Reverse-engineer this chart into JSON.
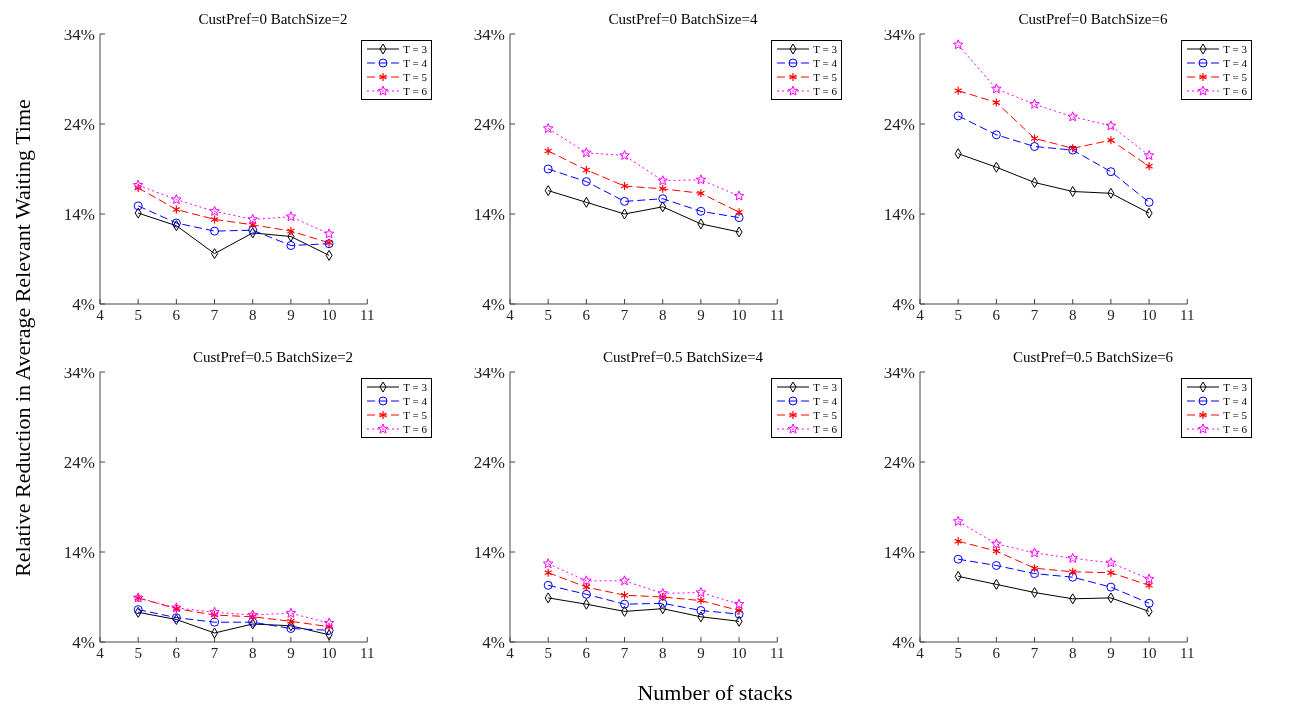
{
  "chart_data": [
    {
      "type": "line",
      "title": "CustPref=0 BatchSize=2",
      "ylabel": "Relative Reduction in Average Relevant Waiting Time",
      "x": [
        5,
        6,
        7,
        8,
        9,
        10
      ],
      "xlim": [
        4,
        11
      ],
      "xticks": [
        4,
        5,
        6,
        7,
        8,
        9,
        10,
        11
      ],
      "ylim": [
        4,
        34
      ],
      "yticks": [
        {
          "value": 4,
          "label": "4%"
        },
        {
          "value": 14,
          "label": "14%"
        },
        {
          "value": 24,
          "label": "24%"
        },
        {
          "value": 34,
          "label": "34%"
        }
      ],
      "grid": false,
      "legend": "top right",
      "series": [
        {
          "name": "T = 3",
          "color": "#000000",
          "marker": "diamond",
          "line_style": "solid",
          "values": [
            14.1,
            12.7,
            9.6,
            11.9,
            11.5,
            9.4
          ]
        },
        {
          "name": "T = 4",
          "color": "#0000ff",
          "marker": "circle",
          "line_style": "dashed",
          "values": [
            14.9,
            13.0,
            12.1,
            12.2,
            10.5,
            10.7
          ]
        },
        {
          "name": "T = 5",
          "color": "#ff0000",
          "marker": "cross",
          "line_style": "dashed",
          "values": [
            16.9,
            14.5,
            13.4,
            12.8,
            12.1,
            10.8
          ]
        },
        {
          "name": "T = 6",
          "color": "#ff00ff",
          "marker": "star",
          "line_style": "dotted",
          "values": [
            17.2,
            15.6,
            14.3,
            13.4,
            13.7,
            11.8
          ]
        }
      ]
    },
    {
      "type": "line",
      "title": "CustPref=0 BatchSize=4",
      "x": [
        5,
        6,
        7,
        8,
        9,
        10
      ],
      "xlim": [
        4,
        11
      ],
      "xticks": [
        4,
        5,
        6,
        7,
        8,
        9,
        10,
        11
      ],
      "ylim": [
        4,
        34
      ],
      "yticks": [
        {
          "value": 4,
          "label": "4%"
        },
        {
          "value": 14,
          "label": "14%"
        },
        {
          "value": 24,
          "label": "24%"
        },
        {
          "value": 34,
          "label": "34%"
        }
      ],
      "grid": false,
      "legend": "top right",
      "series": [
        {
          "name": "T = 3",
          "color": "#000000",
          "marker": "diamond",
          "line_style": "solid",
          "values": [
            16.6,
            15.3,
            14.0,
            14.8,
            12.9,
            12.0
          ]
        },
        {
          "name": "T = 4",
          "color": "#0000ff",
          "marker": "circle",
          "line_style": "dashed",
          "values": [
            19.0,
            17.6,
            15.4,
            15.7,
            14.3,
            13.6
          ]
        },
        {
          "name": "T = 5",
          "color": "#ff0000",
          "marker": "cross",
          "line_style": "dashed",
          "values": [
            21.0,
            18.9,
            17.1,
            16.8,
            16.3,
            14.2
          ]
        },
        {
          "name": "T = 6",
          "color": "#ff00ff",
          "marker": "star",
          "line_style": "dotted",
          "values": [
            23.5,
            20.8,
            20.5,
            17.7,
            17.8,
            16.0
          ]
        }
      ]
    },
    {
      "type": "line",
      "title": "CustPref=0 BatchSize=6",
      "x": [
        5,
        6,
        7,
        8,
        9,
        10
      ],
      "xlim": [
        4,
        11
      ],
      "xticks": [
        4,
        5,
        6,
        7,
        8,
        9,
        10,
        11
      ],
      "ylim": [
        4,
        34
      ],
      "yticks": [
        {
          "value": 4,
          "label": "4%"
        },
        {
          "value": 14,
          "label": "14%"
        },
        {
          "value": 24,
          "label": "24%"
        },
        {
          "value": 34,
          "label": "34%"
        }
      ],
      "grid": false,
      "legend": "top right",
      "series": [
        {
          "name": "T = 3",
          "color": "#000000",
          "marker": "diamond",
          "line_style": "solid",
          "values": [
            20.7,
            19.2,
            17.5,
            16.5,
            16.3,
            14.1
          ]
        },
        {
          "name": "T = 4",
          "color": "#0000ff",
          "marker": "circle",
          "line_style": "dashed",
          "values": [
            24.9,
            22.8,
            21.5,
            21.1,
            18.7,
            15.3
          ]
        },
        {
          "name": "T = 5",
          "color": "#ff0000",
          "marker": "cross",
          "line_style": "dashed",
          "values": [
            27.7,
            26.4,
            22.4,
            21.3,
            22.2,
            19.3
          ]
        },
        {
          "name": "T = 6",
          "color": "#ff00ff",
          "marker": "star",
          "line_style": "dotted",
          "values": [
            32.8,
            27.9,
            26.2,
            24.8,
            23.8,
            20.5
          ]
        }
      ]
    },
    {
      "type": "line",
      "title": "CustPref=0.5 BatchSize=2",
      "x": [
        5,
        6,
        7,
        8,
        9,
        10
      ],
      "xlim": [
        4,
        11
      ],
      "xticks": [
        4,
        5,
        6,
        7,
        8,
        9,
        10,
        11
      ],
      "ylim": [
        4,
        34
      ],
      "yticks": [
        {
          "value": 4,
          "label": "4%"
        },
        {
          "value": 14,
          "label": "14%"
        },
        {
          "value": 24,
          "label": "24%"
        },
        {
          "value": 34,
          "label": "34%"
        }
      ],
      "grid": false,
      "legend": "top right",
      "series": [
        {
          "name": "T = 3",
          "color": "#000000",
          "marker": "diamond",
          "line_style": "solid",
          "values": [
            7.3,
            6.5,
            5.0,
            6.0,
            5.8,
            4.8
          ]
        },
        {
          "name": "T = 4",
          "color": "#0000ff",
          "marker": "circle",
          "line_style": "dashed",
          "values": [
            7.6,
            6.7,
            6.2,
            6.2,
            5.5,
            5.3
          ]
        },
        {
          "name": "T = 5",
          "color": "#ff0000",
          "marker": "cross",
          "line_style": "dashed",
          "values": [
            8.9,
            7.7,
            7.0,
            6.8,
            6.3,
            5.7
          ]
        },
        {
          "name": "T = 6",
          "color": "#ff00ff",
          "marker": "star",
          "line_style": "dotted",
          "values": [
            8.9,
            7.8,
            7.3,
            7.0,
            7.2,
            6.1
          ]
        }
      ]
    },
    {
      "type": "line",
      "title": "CustPref=0.5 BatchSize=4",
      "xlabel": "Number of stacks",
      "x": [
        5,
        6,
        7,
        8,
        9,
        10
      ],
      "xlim": [
        4,
        11
      ],
      "xticks": [
        4,
        5,
        6,
        7,
        8,
        9,
        10,
        11
      ],
      "ylim": [
        4,
        34
      ],
      "yticks": [
        {
          "value": 4,
          "label": "4%"
        },
        {
          "value": 14,
          "label": "14%"
        },
        {
          "value": 24,
          "label": "24%"
        },
        {
          "value": 34,
          "label": "34%"
        }
      ],
      "grid": false,
      "legend": "top right",
      "series": [
        {
          "name": "T = 3",
          "color": "#000000",
          "marker": "diamond",
          "line_style": "solid",
          "values": [
            8.9,
            8.2,
            7.4,
            7.7,
            6.8,
            6.3
          ]
        },
        {
          "name": "T = 4",
          "color": "#0000ff",
          "marker": "circle",
          "line_style": "dashed",
          "values": [
            10.3,
            9.3,
            8.2,
            8.3,
            7.5,
            7.1
          ]
        },
        {
          "name": "T = 5",
          "color": "#ff0000",
          "marker": "cross",
          "line_style": "dashed",
          "values": [
            11.7,
            10.1,
            9.2,
            9.0,
            8.6,
            7.5
          ]
        },
        {
          "name": "T = 6",
          "color": "#ff00ff",
          "marker": "star",
          "line_style": "dotted",
          "values": [
            12.7,
            10.8,
            10.8,
            9.4,
            9.5,
            8.2
          ]
        }
      ]
    },
    {
      "type": "line",
      "title": "CustPref=0.5 BatchSize=6",
      "x": [
        5,
        6,
        7,
        8,
        9,
        10
      ],
      "xlim": [
        4,
        11
      ],
      "xticks": [
        4,
        5,
        6,
        7,
        8,
        9,
        10,
        11
      ],
      "ylim": [
        4,
        34
      ],
      "yticks": [
        {
          "value": 4,
          "label": "4%"
        },
        {
          "value": 14,
          "label": "14%"
        },
        {
          "value": 24,
          "label": "24%"
        },
        {
          "value": 34,
          "label": "34%"
        }
      ],
      "grid": false,
      "legend": "top right",
      "series": [
        {
          "name": "T = 3",
          "color": "#000000",
          "marker": "diamond",
          "line_style": "solid",
          "values": [
            11.3,
            10.4,
            9.5,
            8.8,
            8.9,
            7.4
          ]
        },
        {
          "name": "T = 4",
          "color": "#0000ff",
          "marker": "circle",
          "line_style": "dashed",
          "values": [
            13.2,
            12.5,
            11.6,
            11.2,
            10.1,
            8.3
          ]
        },
        {
          "name": "T = 5",
          "color": "#ff0000",
          "marker": "cross",
          "line_style": "dashed",
          "values": [
            15.2,
            14.1,
            12.2,
            11.8,
            11.7,
            10.3
          ]
        },
        {
          "name": "T = 6",
          "color": "#ff00ff",
          "marker": "star",
          "line_style": "dotted",
          "values": [
            17.4,
            14.9,
            13.9,
            13.3,
            12.8,
            11.0
          ]
        }
      ]
    }
  ]
}
